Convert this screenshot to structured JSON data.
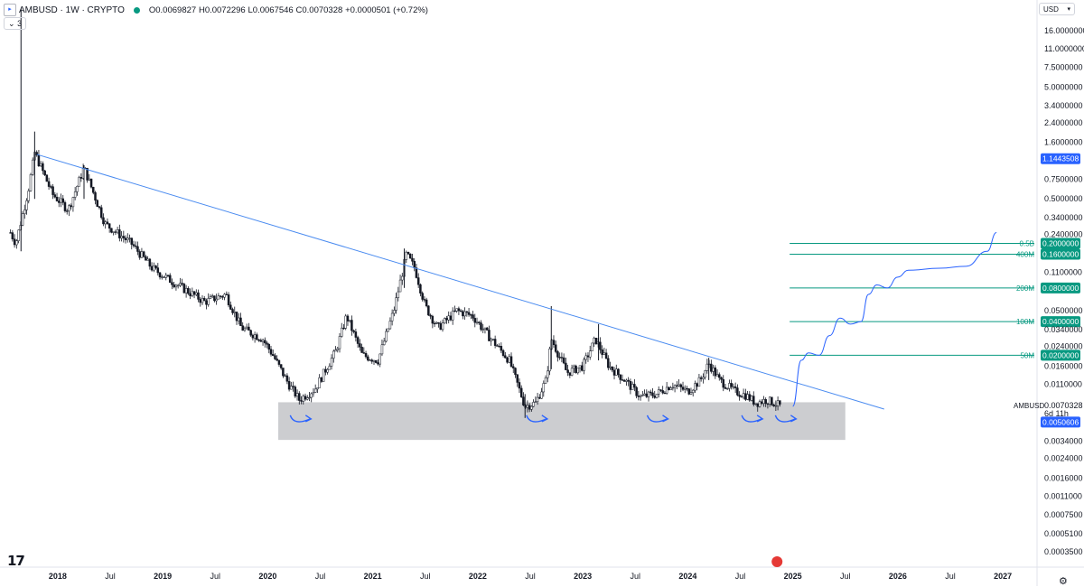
{
  "header": {
    "symbol": "AMBUSD · 1W · CRYPTO",
    "open": "O0.0069827",
    "high": "H0.0072296",
    "low": "L0.0067546",
    "close": "C0.0070328",
    "change": "+0.0000501 (+0.72%)",
    "indicators_toggle": "3",
    "currency": "USD"
  },
  "colors": {
    "trendline": "#4a8bf0",
    "level_line": "#089981",
    "level_tag": "#089981",
    "projection": "#2962ff",
    "price_tag": "#2962ff",
    "base_zone": "#c9cacd",
    "candle_stroke": "#131722",
    "candle_fill_up": "#ffffff"
  },
  "chart_data": {
    "type": "candlestick",
    "scale": "log",
    "ylim": [
      0.00026,
      30.0
    ],
    "xlim": [
      2017.45,
      2027.3
    ],
    "y_ticks": [
      {
        "v": 16.0,
        "label": "16.0000000"
      },
      {
        "v": 11.0,
        "label": "11.0000000"
      },
      {
        "v": 7.5,
        "label": "7.5000000"
      },
      {
        "v": 5.0,
        "label": "5.0000000"
      },
      {
        "v": 3.4,
        "label": "3.4000000"
      },
      {
        "v": 2.4,
        "label": "2.4000000"
      },
      {
        "v": 1.6,
        "label": "1.6000000"
      },
      {
        "v": 0.75,
        "label": "0.7500000"
      },
      {
        "v": 0.5,
        "label": "0.5000000"
      },
      {
        "v": 0.34,
        "label": "0.3400000"
      },
      {
        "v": 0.24,
        "label": "0.2400000"
      },
      {
        "v": 0.11,
        "label": "0.1100000"
      },
      {
        "v": 0.05,
        "label": "0.0500000"
      },
      {
        "v": 0.034,
        "label": "0.0340000"
      },
      {
        "v": 0.024,
        "label": "0.0240000"
      },
      {
        "v": 0.016,
        "label": "0.0160000"
      },
      {
        "v": 0.011,
        "label": "0.0110000"
      },
      {
        "v": 0.0034,
        "label": "0.0034000"
      },
      {
        "v": 0.0024,
        "label": "0.0024000"
      },
      {
        "v": 0.0016,
        "label": "0.0016000"
      },
      {
        "v": 0.0011,
        "label": "0.0011000"
      },
      {
        "v": 0.00075,
        "label": "0.0007500"
      },
      {
        "v": 0.00051,
        "label": "0.0005100"
      },
      {
        "v": 0.00035,
        "label": "0.0003500"
      }
    ],
    "x_ticks": [
      {
        "t": 2018.0,
        "label": "2018",
        "year": true
      },
      {
        "t": 2018.5,
        "label": "Jul",
        "year": false
      },
      {
        "t": 2019.0,
        "label": "2019",
        "year": true
      },
      {
        "t": 2019.5,
        "label": "Jul",
        "year": false
      },
      {
        "t": 2020.0,
        "label": "2020",
        "year": true
      },
      {
        "t": 2020.5,
        "label": "Jul",
        "year": false
      },
      {
        "t": 2021.0,
        "label": "2021",
        "year": true
      },
      {
        "t": 2021.5,
        "label": "Jul",
        "year": false
      },
      {
        "t": 2022.0,
        "label": "2022",
        "year": true
      },
      {
        "t": 2022.5,
        "label": "Jul",
        "year": false
      },
      {
        "t": 2023.0,
        "label": "2023",
        "year": true
      },
      {
        "t": 2023.5,
        "label": "Jul",
        "year": false
      },
      {
        "t": 2024.0,
        "label": "2024",
        "year": true
      },
      {
        "t": 2024.5,
        "label": "Jul",
        "year": false
      },
      {
        "t": 2025.0,
        "label": "2025",
        "year": true
      },
      {
        "t": 2025.5,
        "label": "Jul",
        "year": false
      },
      {
        "t": 2026.0,
        "label": "2026",
        "year": true
      },
      {
        "t": 2026.5,
        "label": "Jul",
        "year": false
      },
      {
        "t": 2027.0,
        "label": "2027",
        "year": true
      }
    ],
    "price_path": [
      {
        "t": 2017.55,
        "v": 0.25
      },
      {
        "t": 2017.6,
        "v": 0.2
      },
      {
        "t": 2017.72,
        "v": 0.6
      },
      {
        "t": 2017.78,
        "v": 1.3
      },
      {
        "t": 2017.95,
        "v": 0.55
      },
      {
        "t": 2018.1,
        "v": 0.4
      },
      {
        "t": 2018.25,
        "v": 0.95
      },
      {
        "t": 2018.45,
        "v": 0.3
      },
      {
        "t": 2018.7,
        "v": 0.2
      },
      {
        "t": 2018.9,
        "v": 0.12
      },
      {
        "t": 2019.1,
        "v": 0.09
      },
      {
        "t": 2019.4,
        "v": 0.06
      },
      {
        "t": 2019.6,
        "v": 0.07
      },
      {
        "t": 2019.75,
        "v": 0.035
      },
      {
        "t": 2019.95,
        "v": 0.028
      },
      {
        "t": 2020.05,
        "v": 0.02
      },
      {
        "t": 2020.2,
        "v": 0.011
      },
      {
        "t": 2020.3,
        "v": 0.008
      },
      {
        "t": 2020.45,
        "v": 0.01
      },
      {
        "t": 2020.65,
        "v": 0.022
      },
      {
        "t": 2020.75,
        "v": 0.045
      },
      {
        "t": 2020.9,
        "v": 0.02
      },
      {
        "t": 2021.05,
        "v": 0.018
      },
      {
        "t": 2021.2,
        "v": 0.05
      },
      {
        "t": 2021.32,
        "v": 0.16
      },
      {
        "t": 2021.4,
        "v": 0.12
      },
      {
        "t": 2021.5,
        "v": 0.055
      },
      {
        "t": 2021.62,
        "v": 0.035
      },
      {
        "t": 2021.8,
        "v": 0.05
      },
      {
        "t": 2021.95,
        "v": 0.045
      },
      {
        "t": 2022.1,
        "v": 0.03
      },
      {
        "t": 2022.3,
        "v": 0.018
      },
      {
        "t": 2022.45,
        "v": 0.007
      },
      {
        "t": 2022.55,
        "v": 0.0075
      },
      {
        "t": 2022.65,
        "v": 0.012
      },
      {
        "t": 2022.7,
        "v": 0.028
      },
      {
        "t": 2022.85,
        "v": 0.014
      },
      {
        "t": 2023.0,
        "v": 0.016
      },
      {
        "t": 2023.12,
        "v": 0.028
      },
      {
        "t": 2023.25,
        "v": 0.016
      },
      {
        "t": 2023.4,
        "v": 0.012
      },
      {
        "t": 2023.55,
        "v": 0.0085
      },
      {
        "t": 2023.7,
        "v": 0.009
      },
      {
        "t": 2023.85,
        "v": 0.011
      },
      {
        "t": 2024.0,
        "v": 0.0095
      },
      {
        "t": 2024.12,
        "v": 0.012
      },
      {
        "t": 2024.2,
        "v": 0.017
      },
      {
        "t": 2024.3,
        "v": 0.012
      },
      {
        "t": 2024.45,
        "v": 0.0095
      },
      {
        "t": 2024.55,
        "v": 0.0088
      },
      {
        "t": 2024.65,
        "v": 0.0075
      },
      {
        "t": 2024.75,
        "v": 0.008
      },
      {
        "t": 2024.85,
        "v": 0.0073
      },
      {
        "t": 2024.88,
        "v": 0.00703
      }
    ],
    "spikes": [
      {
        "t": 2017.65,
        "high": 25.0,
        "low": 0.17
      },
      {
        "t": 2017.78,
        "high": 2.0,
        "low": 0.5
      },
      {
        "t": 2018.25,
        "high": 1.0,
        "low": 0.5
      },
      {
        "t": 2021.3,
        "high": 0.18,
        "low": 0.08
      },
      {
        "t": 2022.7,
        "high": 0.055,
        "low": 0.015
      },
      {
        "t": 2023.15,
        "high": 0.038,
        "low": 0.018
      },
      {
        "t": 2024.2,
        "high": 0.019,
        "low": 0.012
      },
      {
        "t": 2022.45,
        "high": 0.009,
        "low": 0.0055
      }
    ],
    "trendline": {
      "t1": 2017.8,
      "v1": 1.25,
      "t2": 2025.87,
      "v2": 0.0066
    },
    "base_zone": {
      "t1": 2020.1,
      "t2": 2025.5,
      "top": 0.0076,
      "bottom": 0.0035
    },
    "levels": [
      {
        "v": 0.2,
        "tag": "0.2000000",
        "label": "0.5B"
      },
      {
        "v": 0.16,
        "tag": "0.1600000",
        "label": "400M"
      },
      {
        "v": 0.08,
        "tag": "0.0800000",
        "label": "200M"
      },
      {
        "v": 0.04,
        "tag": "0.0400000",
        "label": "100M"
      },
      {
        "v": 0.02,
        "tag": "0.0200000",
        "label": "50M"
      }
    ],
    "levels_start": 2024.97,
    "projection": [
      {
        "t": 2025.0,
        "v": 0.007
      },
      {
        "t": 2025.08,
        "v": 0.018
      },
      {
        "t": 2025.15,
        "v": 0.021
      },
      {
        "t": 2025.25,
        "v": 0.02
      },
      {
        "t": 2025.35,
        "v": 0.03
      },
      {
        "t": 2025.45,
        "v": 0.043
      },
      {
        "t": 2025.55,
        "v": 0.038
      },
      {
        "t": 2025.65,
        "v": 0.04
      },
      {
        "t": 2025.72,
        "v": 0.07
      },
      {
        "t": 2025.8,
        "v": 0.085
      },
      {
        "t": 2025.9,
        "v": 0.08
      },
      {
        "t": 2026.0,
        "v": 0.1
      },
      {
        "t": 2026.1,
        "v": 0.115
      },
      {
        "t": 2026.4,
        "v": 0.12
      },
      {
        "t": 2026.65,
        "v": 0.125
      },
      {
        "t": 2026.85,
        "v": 0.17
      },
      {
        "t": 2026.94,
        "v": 0.25
      }
    ],
    "bounce_arrows": [
      {
        "t": 2020.3
      },
      {
        "t": 2022.55
      },
      {
        "t": 2023.7
      },
      {
        "t": 2024.6
      },
      {
        "t": 2024.92
      }
    ],
    "current": {
      "symbol": "AMBUSD",
      "price": "0.0070328",
      "countdown": "6d 11h",
      "marker": 1.1443508,
      "marker_label": "1.1443508",
      "blue_tag": 0.0050606,
      "blue_tag_label": "0.0050606"
    }
  }
}
